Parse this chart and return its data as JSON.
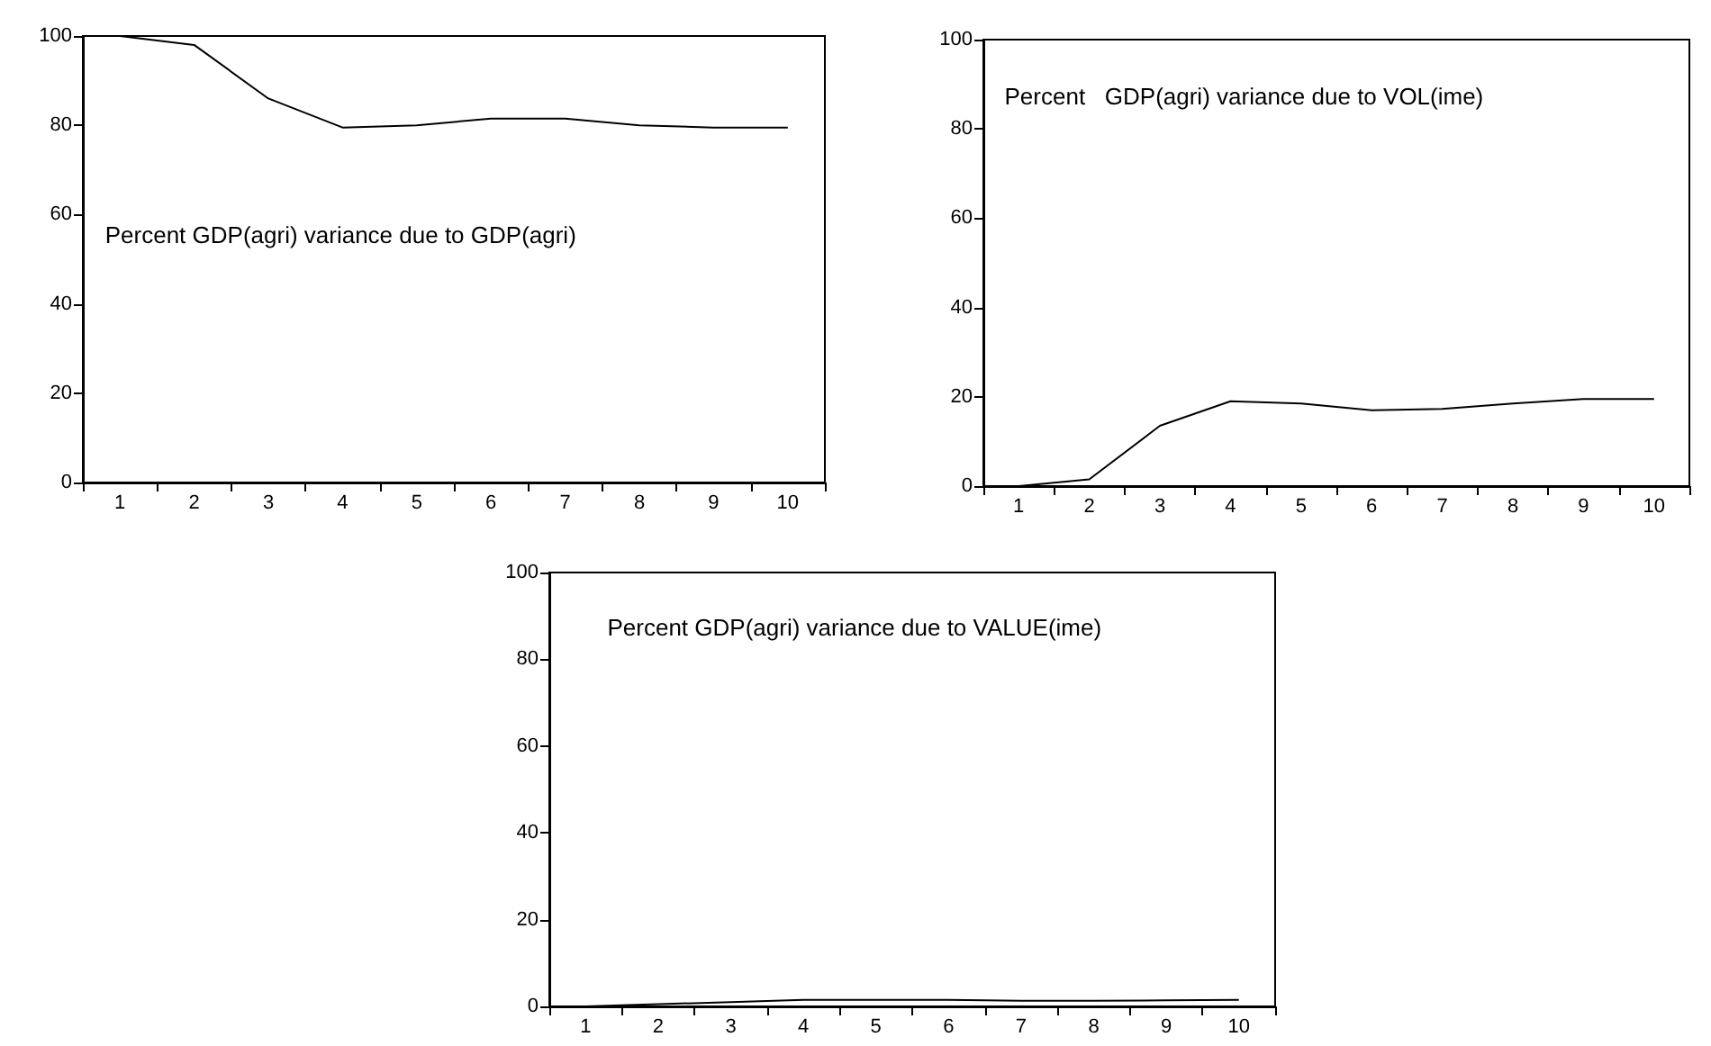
{
  "chart_data": [
    {
      "type": "line",
      "categories": [
        "1",
        "2",
        "3",
        "4",
        "5",
        "6",
        "7",
        "8",
        "9",
        "10"
      ],
      "series": [
        {
          "color": "#000000",
          "values": [
            100,
            98,
            86,
            79.5,
            80,
            81.5,
            81.5,
            80,
            79.5,
            79.5
          ]
        }
      ],
      "ylim": [
        0,
        100
      ],
      "yticks": [
        0,
        20,
        40,
        60,
        80,
        100
      ],
      "grid": false,
      "marker": "none",
      "annotations": [
        "Percent GDP(agri) variance due to GDP(agri)"
      ]
    },
    {
      "type": "line",
      "categories": [
        "1",
        "2",
        "3",
        "4",
        "5",
        "6",
        "7",
        "8",
        "9",
        "10"
      ],
      "series": [
        {
          "color": "#000000",
          "values": [
            0,
            1.5,
            13.5,
            19,
            18.5,
            17,
            17.3,
            18.5,
            19.5,
            19.5
          ]
        }
      ],
      "ylim": [
        0,
        100
      ],
      "yticks": [
        0,
        20,
        40,
        60,
        80,
        100
      ],
      "grid": false,
      "marker": "none",
      "annotations": [
        "Percent   GDP(agri) variance due to VOL(ime)"
      ]
    },
    {
      "type": "line",
      "categories": [
        "1",
        "2",
        "3",
        "4",
        "5",
        "6",
        "7",
        "8",
        "9",
        "10"
      ],
      "series": [
        {
          "color": "#000000",
          "values": [
            0,
            0.5,
            1,
            1.5,
            1.5,
            1.5,
            1.3,
            1.3,
            1.4,
            1.5
          ]
        }
      ],
      "ylim": [
        0,
        100
      ],
      "yticks": [
        0,
        20,
        40,
        60,
        80,
        100
      ],
      "grid": false,
      "marker": "none",
      "annotations": [
        "Percent GDP(agri) variance due to VALUE(ime)"
      ]
    }
  ]
}
